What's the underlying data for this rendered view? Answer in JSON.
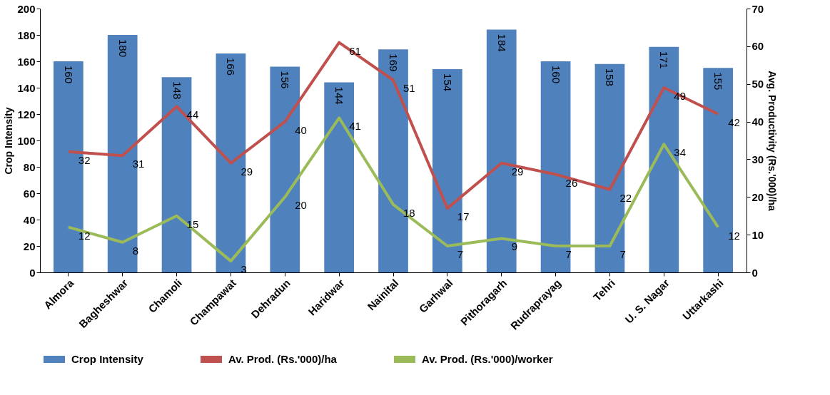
{
  "chart_data": {
    "type": "bar",
    "categories": [
      "Almora",
      "Bagheshwar",
      "Chamoli",
      "Champawat",
      "Dehradun",
      "Haridwar",
      "Nainital",
      "Garhwal",
      "Pithoragarh",
      "Rudraprayag",
      "Tehri",
      "U. S. Nagar",
      "Uttarkashi"
    ],
    "series": [
      {
        "name": "Crop Intensity",
        "color": "#4f81bd",
        "values": [
          160,
          180,
          148,
          166,
          156,
          144,
          169,
          154,
          184,
          160,
          158,
          171,
          155
        ]
      },
      {
        "name": "Av. Prod. (Rs.'000)/ha",
        "type": "line",
        "axis": "y2",
        "color": "#c0504d",
        "values": [
          32,
          31,
          44,
          29,
          40,
          61,
          51,
          17,
          29,
          26,
          22,
          49,
          42
        ]
      },
      {
        "name": "Av. Prod. (Rs.'000)/worker",
        "type": "line",
        "axis": "y2",
        "color": "#9bbb59",
        "values": [
          12,
          8,
          15,
          3,
          20,
          41,
          18,
          7,
          9,
          7,
          7,
          34,
          12
        ]
      }
    ],
    "ylabel": "Crop Intensity",
    "y2label": "Avg. Productivity (Rs.'000)/ha",
    "ylim": [
      0,
      200
    ],
    "yticks": [
      0,
      20,
      40,
      60,
      80,
      100,
      120,
      140,
      160,
      180,
      200
    ],
    "y2lim": [
      0,
      70
    ],
    "y2ticks": [
      0,
      10,
      20,
      30,
      40,
      50,
      60,
      70
    ],
    "data_labels": true,
    "legend": "bottom",
    "grid": false,
    "marker": "none",
    "line_style": "solid"
  }
}
